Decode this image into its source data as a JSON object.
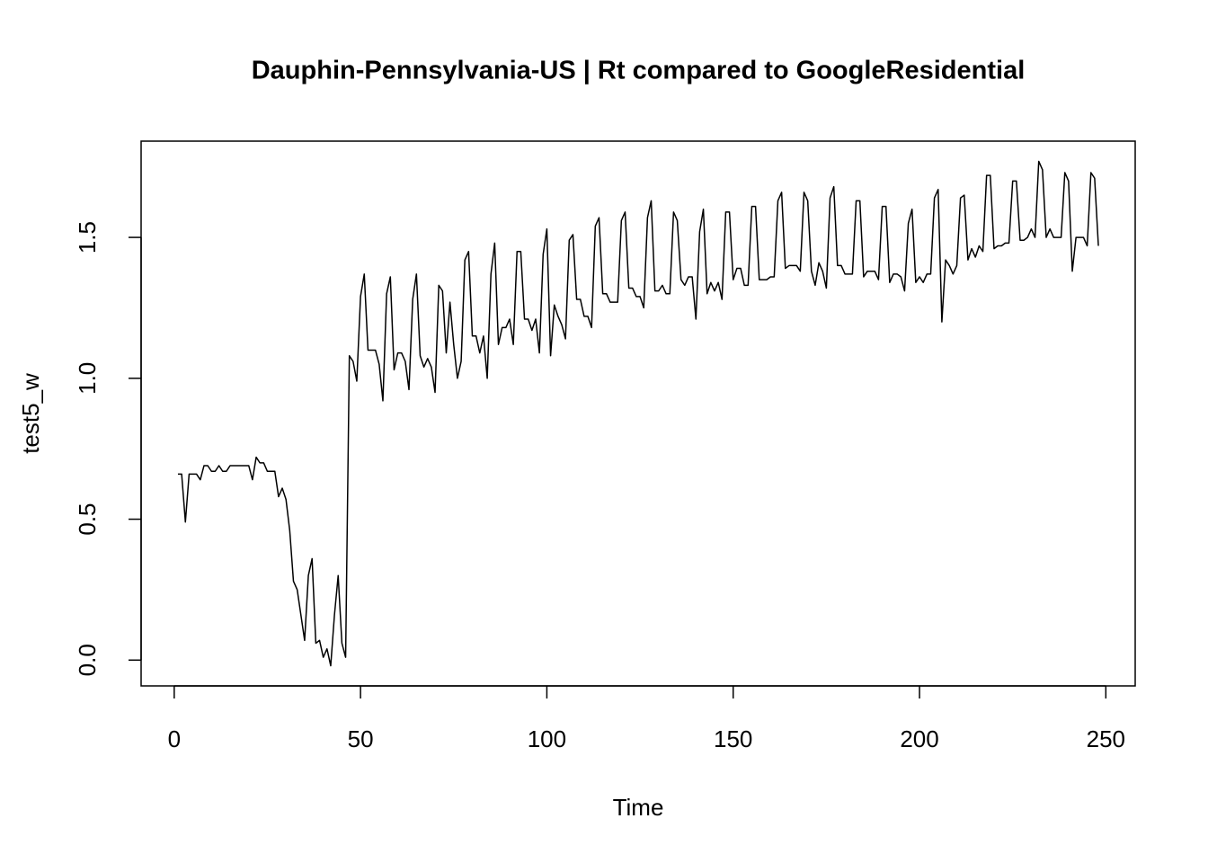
{
  "chart_data": {
    "type": "line",
    "title": "Dauphin-Pennsylvania-US | Rt compared to GoogleResidential",
    "xlabel": "Time",
    "ylabel": "test5_w",
    "color": "#000000",
    "xlim": [
      -8.88,
      257.88
    ],
    "ylim": [
      -0.0916,
      1.8416
    ],
    "xticks": [
      0,
      50,
      100,
      150,
      200,
      250
    ],
    "yticks": [
      {
        "value": 0,
        "label": "0.0"
      },
      0.5,
      {
        "value": 1,
        "label": "1.0"
      },
      1.5
    ],
    "x": [
      1,
      2,
      3,
      4,
      5,
      6,
      7,
      8,
      9,
      10,
      11,
      12,
      13,
      14,
      15,
      16,
      17,
      18,
      19,
      20,
      21,
      22,
      23,
      24,
      25,
      26,
      27,
      28,
      29,
      30,
      31,
      32,
      33,
      34,
      35,
      36,
      37,
      38,
      39,
      40,
      41,
      42,
      43,
      44,
      45,
      46,
      47,
      48,
      49,
      50,
      51,
      52,
      53,
      54,
      55,
      56,
      57,
      58,
      59,
      60,
      61,
      62,
      63,
      64,
      65,
      66,
      67,
      68,
      69,
      70,
      71,
      72,
      73,
      74,
      75,
      76,
      77,
      78,
      79,
      80,
      81,
      82,
      83,
      84,
      85,
      86,
      87,
      88,
      89,
      90,
      91,
      92,
      93,
      94,
      95,
      96,
      97,
      98,
      99,
      100,
      101,
      102,
      103,
      104,
      105,
      106,
      107,
      108,
      109,
      110,
      111,
      112,
      113,
      114,
      115,
      116,
      117,
      118,
      119,
      120,
      121,
      122,
      123,
      124,
      125,
      126,
      127,
      128,
      129,
      130,
      131,
      132,
      133,
      134,
      135,
      136,
      137,
      138,
      139,
      140,
      141,
      142,
      143,
      144,
      145,
      146,
      147,
      148,
      149,
      150,
      151,
      152,
      153,
      154,
      155,
      156,
      157,
      158,
      159,
      160,
      161,
      162,
      163,
      164,
      165,
      166,
      167,
      168,
      169,
      170,
      171,
      172,
      173,
      174,
      175,
      176,
      177,
      178,
      179,
      180,
      181,
      182,
      183,
      184,
      185,
      186,
      187,
      188,
      189,
      190,
      191,
      192,
      193,
      194,
      195,
      196,
      197,
      198,
      199,
      200,
      201,
      202,
      203,
      204,
      205,
      206,
      207,
      208,
      209,
      210,
      211,
      212,
      213,
      214,
      215,
      216,
      217,
      218,
      219,
      220,
      221,
      222,
      223,
      224,
      225,
      226,
      227,
      228,
      229,
      230,
      231,
      232,
      233,
      234,
      235,
      236,
      237,
      238,
      239,
      240,
      241,
      242,
      243,
      244,
      245,
      246,
      247,
      248
    ],
    "values": [
      0.66,
      0.66,
      0.49,
      0.66,
      0.66,
      0.66,
      0.64,
      0.69,
      0.69,
      0.67,
      0.67,
      0.69,
      0.67,
      0.67,
      0.69,
      0.69,
      0.69,
      0.69,
      0.69,
      0.69,
      0.64,
      0.72,
      0.7,
      0.7,
      0.67,
      0.67,
      0.67,
      0.58,
      0.61,
      0.57,
      0.46,
      0.28,
      0.25,
      0.16,
      0.07,
      0.3,
      0.36,
      0.06,
      0.07,
      0.01,
      0.04,
      -0.02,
      0.16,
      0.3,
      0.06,
      0.01,
      1.08,
      1.06,
      0.99,
      1.29,
      1.37,
      1.1,
      1.1,
      1.1,
      1.05,
      0.92,
      1.3,
      1.36,
      1.03,
      1.09,
      1.09,
      1.06,
      0.96,
      1.28,
      1.37,
      1.08,
      1.04,
      1.07,
      1.04,
      0.95,
      1.33,
      1.31,
      1.09,
      1.27,
      1.12,
      1.0,
      1.06,
      1.42,
      1.45,
      1.15,
      1.15,
      1.09,
      1.15,
      1.0,
      1.37,
      1.48,
      1.12,
      1.18,
      1.18,
      1.21,
      1.12,
      1.45,
      1.45,
      1.21,
      1.21,
      1.17,
      1.21,
      1.09,
      1.44,
      1.53,
      1.08,
      1.26,
      1.22,
      1.19,
      1.14,
      1.49,
      1.51,
      1.28,
      1.28,
      1.22,
      1.22,
      1.18,
      1.54,
      1.57,
      1.3,
      1.3,
      1.27,
      1.27,
      1.27,
      1.56,
      1.59,
      1.32,
      1.32,
      1.29,
      1.29,
      1.25,
      1.57,
      1.63,
      1.31,
      1.31,
      1.33,
      1.3,
      1.3,
      1.59,
      1.56,
      1.35,
      1.33,
      1.36,
      1.36,
      1.21,
      1.52,
      1.6,
      1.3,
      1.34,
      1.31,
      1.34,
      1.28,
      1.59,
      1.59,
      1.35,
      1.39,
      1.39,
      1.33,
      1.33,
      1.61,
      1.61,
      1.35,
      1.35,
      1.35,
      1.36,
      1.36,
      1.63,
      1.66,
      1.39,
      1.4,
      1.4,
      1.4,
      1.38,
      1.66,
      1.63,
      1.38,
      1.33,
      1.41,
      1.38,
      1.32,
      1.64,
      1.68,
      1.4,
      1.4,
      1.37,
      1.37,
      1.37,
      1.63,
      1.63,
      1.36,
      1.38,
      1.38,
      1.38,
      1.35,
      1.61,
      1.61,
      1.34,
      1.37,
      1.37,
      1.36,
      1.31,
      1.55,
      1.6,
      1.34,
      1.36,
      1.34,
      1.37,
      1.37,
      1.64,
      1.67,
      1.2,
      1.42,
      1.4,
      1.37,
      1.4,
      1.64,
      1.65,
      1.42,
      1.46,
      1.43,
      1.47,
      1.45,
      1.72,
      1.72,
      1.46,
      1.47,
      1.47,
      1.48,
      1.48,
      1.7,
      1.7,
      1.49,
      1.49,
      1.5,
      1.53,
      1.5,
      1.77,
      1.74,
      1.5,
      1.53,
      1.5,
      1.5,
      1.5,
      1.73,
      1.7,
      1.38,
      1.5,
      1.5,
      1.5,
      1.47,
      1.73,
      1.71,
      1.47
    ]
  }
}
